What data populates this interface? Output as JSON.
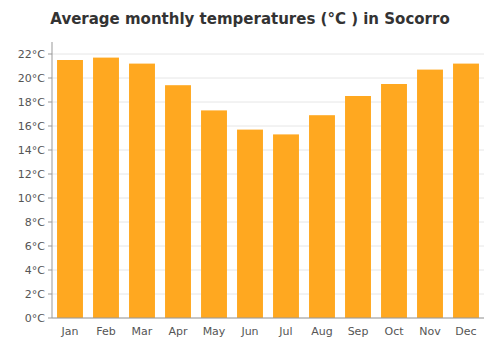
{
  "chart_data": {
    "type": "bar",
    "title": "Average monthly temperatures (°C ) in Socorro",
    "categories": [
      "Jan",
      "Feb",
      "Mar",
      "Apr",
      "May",
      "Jun",
      "Jul",
      "Aug",
      "Sep",
      "Oct",
      "Nov",
      "Dec"
    ],
    "values": [
      21.5,
      21.7,
      21.2,
      19.4,
      17.3,
      15.7,
      15.3,
      16.9,
      18.5,
      19.5,
      20.7,
      21.2
    ],
    "color": "#FFA820",
    "ylim": [
      0,
      23
    ],
    "yticks": [
      {
        "value": 0,
        "label": "0°C"
      },
      {
        "value": 2,
        "label": "2°C"
      },
      {
        "value": 4,
        "label": "4°C"
      },
      {
        "value": 6,
        "label": "6°C"
      },
      {
        "value": 8,
        "label": "8°C"
      },
      {
        "value": 10,
        "label": "10°C"
      },
      {
        "value": 12,
        "label": "12°C"
      },
      {
        "value": 14,
        "label": "14°C"
      },
      {
        "value": 16,
        "label": "16°C"
      },
      {
        "value": 18,
        "label": "18°C"
      },
      {
        "value": 20,
        "label": "20°C"
      },
      {
        "value": 22,
        "label": "22°C"
      }
    ],
    "grid": true
  }
}
